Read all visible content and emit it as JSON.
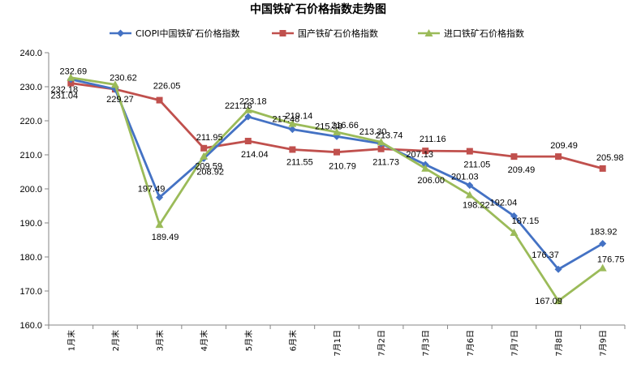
{
  "chart_data": {
    "type": "line",
    "title": "中国铁矿石价格指数走势图",
    "categories": [
      "1月末",
      "2月末",
      "3月末",
      "4月末",
      "5月末",
      "6月末",
      "7月1日",
      "7月2日",
      "7月3日",
      "7月6日",
      "7月7日",
      "7月8日",
      "7月9日"
    ],
    "ylim": [
      160,
      240
    ],
    "yticks": [
      "160.0",
      "170.0",
      "180.0",
      "190.0",
      "200.0",
      "210.0",
      "220.0",
      "230.0",
      "240.0"
    ],
    "grid": false,
    "legend_position": "top",
    "series": [
      {
        "name": "CIOPI中国铁矿石价格指数",
        "color": "#4472C4",
        "marker": "diamond",
        "values": [
          232.18,
          229.27,
          197.49,
          208.92,
          221.18,
          217.48,
          215.38,
          213.3,
          207.13,
          201.03,
          192.04,
          176.37,
          183.92
        ],
        "labels": [
          "232.18",
          "229.27",
          "197.49",
          "208.92",
          "221.18",
          "217.48",
          "215.38",
          "213.30",
          "207.13",
          "201.03",
          "192.04",
          "176.37",
          "183.92"
        ]
      },
      {
        "name": "国产铁矿石价格指数",
        "color": "#C0504D",
        "marker": "square",
        "values": [
          231.04,
          229.27,
          226.05,
          211.95,
          214.04,
          211.55,
          210.79,
          211.73,
          211.16,
          211.05,
          209.49,
          209.49,
          205.98
        ],
        "labels": [
          "231.04",
          "",
          "226.05",
          "211.95",
          "214.04",
          "211.55",
          "210.79",
          "211.73",
          "211.16",
          "211.05",
          "209.49",
          "209.49",
          "205.98"
        ]
      },
      {
        "name": "进口铁矿石价格指数",
        "color": "#9BBB59",
        "marker": "triangle",
        "values": [
          232.69,
          230.62,
          189.49,
          209.59,
          223.18,
          219.14,
          216.66,
          213.74,
          206.0,
          198.22,
          187.15,
          167.09,
          176.75
        ],
        "labels": [
          "232.69",
          "230.62",
          "189.49",
          "209.59",
          "223.18",
          "219.14",
          "216.66",
          "213.74",
          "206.00",
          "198.22",
          "187.15",
          "167.09",
          "176.75"
        ]
      }
    ]
  }
}
